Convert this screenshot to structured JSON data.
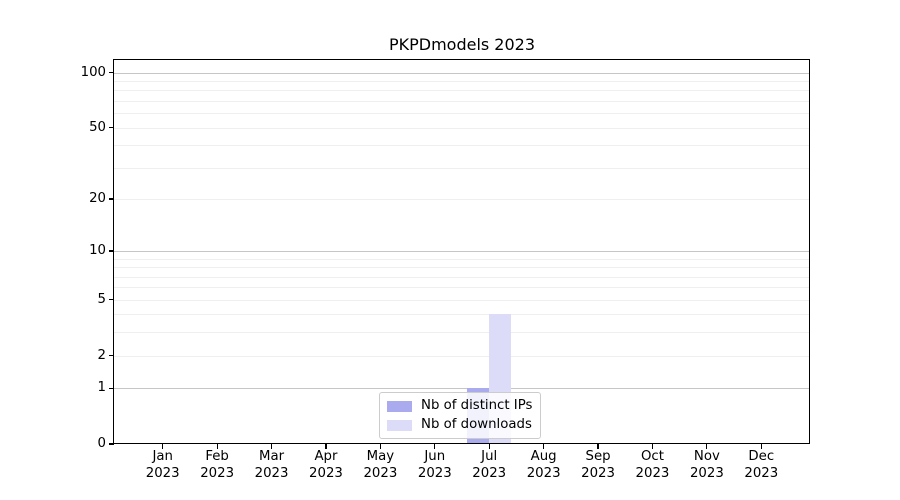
{
  "chart_data": {
    "type": "bar",
    "title": "PKPDmodels 2023",
    "categories": [
      "Jan 2023",
      "Feb 2023",
      "Mar 2023",
      "Apr 2023",
      "May 2023",
      "Jun 2023",
      "Jul 2023",
      "Aug 2023",
      "Sep 2023",
      "Oct 2023",
      "Nov 2023",
      "Dec 2023"
    ],
    "series": [
      {
        "name": "Nb of distinct IPs",
        "color": "#aaaaef",
        "values": [
          0,
          0,
          0,
          0,
          0,
          0,
          1,
          0,
          0,
          0,
          0,
          0
        ]
      },
      {
        "name": "Nb of downloads",
        "color": "#dcdcf8",
        "values": [
          0,
          0,
          0,
          0,
          0,
          0,
          4,
          0,
          0,
          0,
          0,
          0
        ]
      }
    ],
    "xlabel": "",
    "ylabel": "",
    "yscale": "log1p",
    "y_ticks": [
      0,
      1,
      2,
      5,
      10,
      20,
      50,
      100
    ],
    "ylim": [
      0,
      117
    ],
    "grid": "horizontal; major lines at 1,10,100; minor lines at 2-9 and 20-90",
    "legend_position": "lower center",
    "colors": {
      "major_grid": "#c6c6c6",
      "minor_grid": "#efefef",
      "axis": "#000000",
      "background": "#ffffff"
    }
  }
}
